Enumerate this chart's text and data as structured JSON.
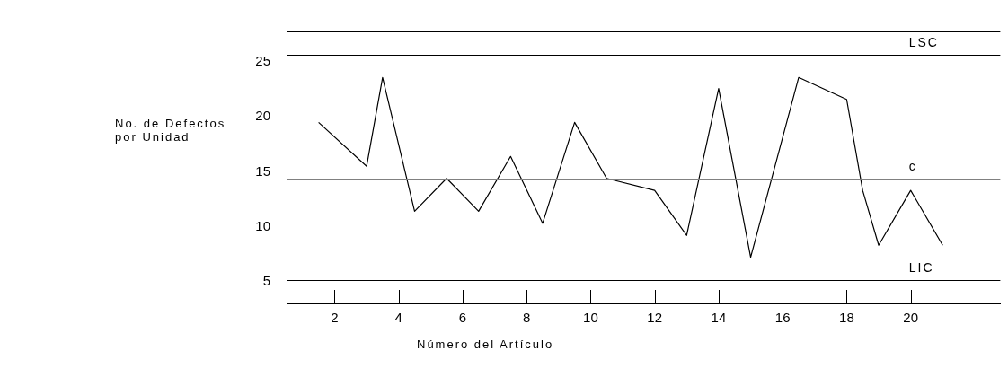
{
  "chart_data": {
    "type": "line",
    "xlabel": "Número del Artículo",
    "ylabel": "No. de Defectos\npor Unidad",
    "x": [
      1.5,
      3,
      3.5,
      4.5,
      5.5,
      6.5,
      7.5,
      8.5,
      9.5,
      10.5,
      12,
      13,
      14,
      15,
      16.5,
      18,
      18.5,
      19,
      20,
      21
    ],
    "series": [
      {
        "color": "#000000",
        "values": [
          19.5,
          15.5,
          23.6,
          11.4,
          14.4,
          11.4,
          16.4,
          10.3,
          19.5,
          14.4,
          13.3,
          9.2,
          22.6,
          7.2,
          23.6,
          21.6,
          13.3,
          8.3,
          13.3,
          8.3
        ]
      }
    ],
    "xlim": [
      0.5,
      22.8
    ],
    "xticks": [
      2,
      4,
      6,
      8,
      10,
      12,
      14,
      16,
      18,
      20
    ],
    "ylim": [
      3,
      27.8
    ],
    "yticks": [
      5,
      10,
      15,
      20,
      25
    ],
    "ref_lines": [
      {
        "axis": "y",
        "value": 25.7,
        "label": "LSC",
        "color": "#000000"
      },
      {
        "axis": "y",
        "value": 14.4,
        "label": "c",
        "color": "#808080"
      },
      {
        "axis": "y",
        "value": 5.1,
        "label": "LIC",
        "color": "#000000"
      }
    ],
    "grid": false,
    "legend": false,
    "marker": "none",
    "line_style": "solid"
  }
}
